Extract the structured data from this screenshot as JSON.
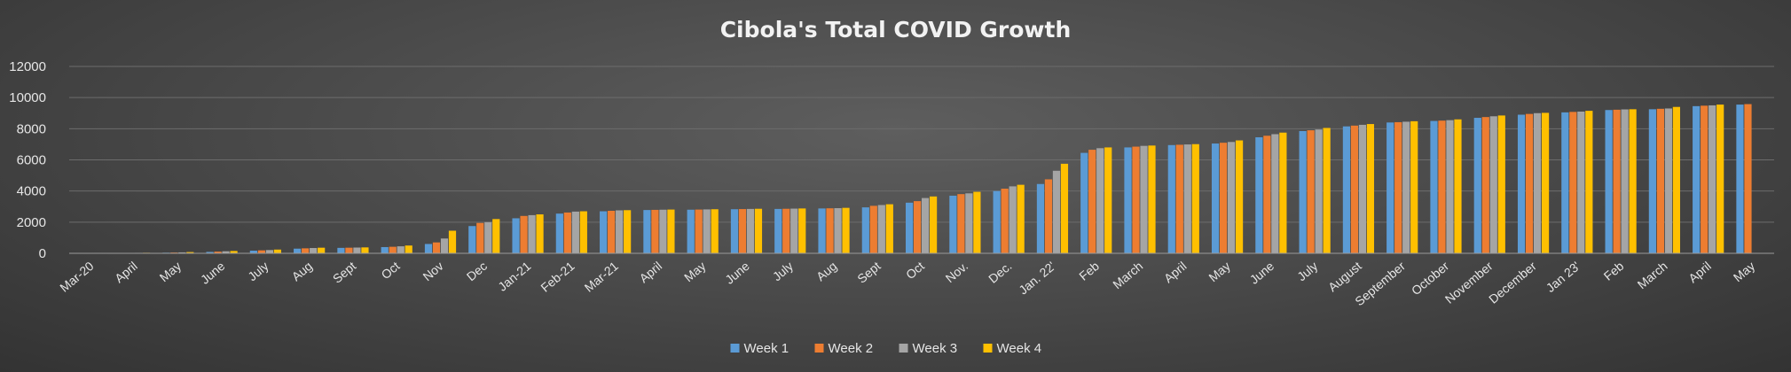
{
  "chart_data": {
    "type": "bar",
    "title": "Cibola's Total COVID Growth",
    "xlabel": "",
    "ylabel": "",
    "ylim": [
      0,
      12000
    ],
    "yticks": [
      0,
      2000,
      4000,
      6000,
      8000,
      10000,
      12000
    ],
    "grid": true,
    "legend_position": "bottom",
    "categories": [
      "Mar-20",
      "April",
      "May",
      "June",
      "July",
      "Aug",
      "Sept",
      "Oct",
      "Nov",
      "Dec",
      "Jan-21",
      "Feb-21",
      "Mar-21",
      "April",
      "May",
      "June",
      "July",
      "Aug",
      "Sept",
      "Oct",
      "Nov.",
      "Dec.",
      "Jan. 22'",
      "Feb",
      "March",
      "April",
      "May",
      "June",
      "July",
      "August",
      "September",
      "October",
      "November",
      "December",
      "Jan 23'",
      "Feb",
      "March",
      "April",
      "May"
    ],
    "series": [
      {
        "name": "Week 1",
        "color": "#5b9bd5",
        "values": [
          0,
          20,
          40,
          90,
          170,
          300,
          350,
          400,
          600,
          1750,
          2250,
          2550,
          2700,
          2780,
          2800,
          2830,
          2850,
          2880,
          2950,
          3250,
          3700,
          4000,
          4450,
          6450,
          6800,
          6950,
          7050,
          7450,
          7850,
          8150,
          8400,
          8500,
          8700,
          8900,
          9050,
          9200,
          9250,
          9450,
          9550
        ]
      },
      {
        "name": "Week 2",
        "color": "#ed7d31",
        "values": [
          5,
          25,
          50,
          110,
          190,
          320,
          360,
          420,
          700,
          1950,
          2400,
          2620,
          2730,
          2790,
          2810,
          2840,
          2860,
          2890,
          3050,
          3350,
          3800,
          4150,
          4750,
          6650,
          6850,
          6970,
          7100,
          7550,
          7900,
          8200,
          8420,
          8520,
          8750,
          8950,
          9080,
          9220,
          9280,
          9480,
          9580
        ]
      },
      {
        "name": "Week 3",
        "color": "#a5a5a5",
        "values": [
          10,
          30,
          60,
          130,
          210,
          340,
          370,
          450,
          950,
          2000,
          2450,
          2680,
          2760,
          2800,
          2820,
          2850,
          2870,
          2900,
          3100,
          3550,
          3850,
          4300,
          5300,
          6750,
          6900,
          6990,
          7150,
          7650,
          7950,
          8250,
          8450,
          8550,
          8800,
          9000,
          9100,
          9240,
          9300,
          9500,
          null
        ]
      },
      {
        "name": "Week 4",
        "color": "#ffc000",
        "values": [
          15,
          35,
          80,
          150,
          240,
          360,
          380,
          500,
          1450,
          2200,
          2500,
          2700,
          2770,
          2810,
          2830,
          2860,
          2880,
          2920,
          3150,
          3650,
          3950,
          4400,
          5750,
          6800,
          6920,
          7010,
          7250,
          7750,
          8050,
          8300,
          8480,
          8600,
          8850,
          9020,
          9150,
          9250,
          9400,
          9550,
          null
        ]
      }
    ]
  }
}
